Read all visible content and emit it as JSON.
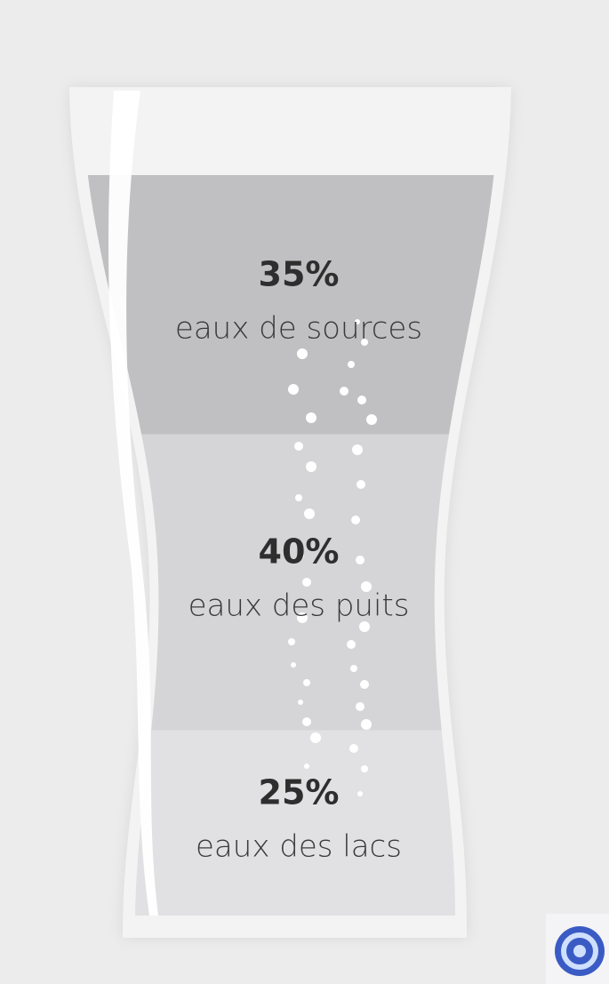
{
  "chart_data": {
    "type": "glass",
    "categories": [
      "eaux de sources",
      "eaux des puits",
      "eaux des lacs"
    ],
    "values": [
      35,
      40,
      25
    ],
    "value_labels": [
      "35%",
      "40%",
      "25%"
    ],
    "colors": [
      "#c0c0c2",
      "#d5d5d7",
      "#e1e1e3"
    ]
  }
}
